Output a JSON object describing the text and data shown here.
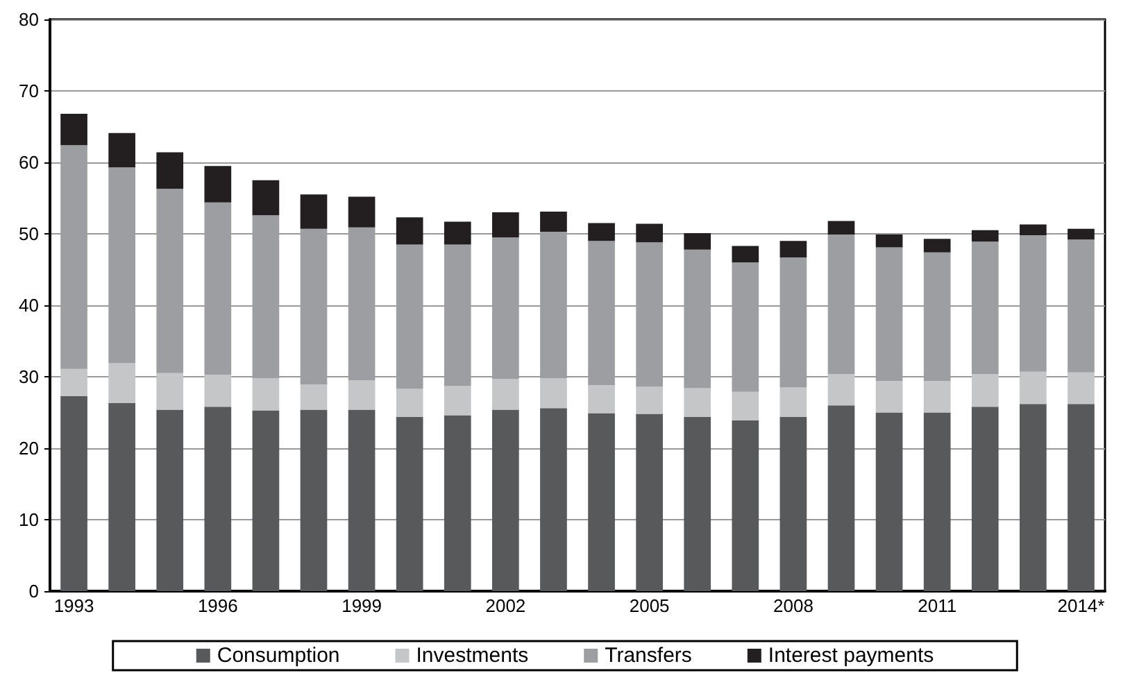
{
  "chart_data": {
    "type": "bar",
    "stacked": true,
    "grid": "y",
    "legend": "bottom",
    "categories": [
      "1993",
      null,
      null,
      "1996",
      null,
      null,
      "1999",
      null,
      null,
      "2002",
      null,
      null,
      "2005",
      null,
      null,
      "2008",
      null,
      null,
      "2011",
      null,
      null,
      "2014*"
    ],
    "ylim": [
      0,
      80
    ],
    "yticks": [
      0,
      10,
      20,
      30,
      40,
      50,
      60,
      70,
      80
    ],
    "series": [
      {
        "name": "Consumption",
        "color": "#58595b",
        "values": [
          27.3,
          26.3,
          25.4,
          25.8,
          25.3,
          25.4,
          25.4,
          24.4,
          24.6,
          25.4,
          25.6,
          24.9,
          24.8,
          24.4,
          23.9,
          24.4,
          26.0,
          25.0,
          25.0,
          25.8,
          26.2,
          26.2
        ]
      },
      {
        "name": "Investments",
        "color": "#c5c6c8",
        "values": [
          3.8,
          5.6,
          5.1,
          4.5,
          4.5,
          3.5,
          4.1,
          3.9,
          4.1,
          4.3,
          4.2,
          3.9,
          3.8,
          4.0,
          4.0,
          4.1,
          4.4,
          4.4,
          4.4,
          4.6,
          4.5,
          4.4
        ]
      },
      {
        "name": "Transfers",
        "color": "#9d9ea2",
        "values": [
          31.3,
          27.4,
          25.8,
          24.1,
          22.8,
          21.8,
          21.4,
          20.2,
          19.8,
          19.8,
          20.5,
          20.2,
          20.2,
          19.4,
          18.1,
          18.2,
          19.5,
          18.7,
          18.0,
          18.5,
          19.1,
          18.6
        ]
      },
      {
        "name": "Interest payments",
        "color": "#231f20",
        "values": [
          4.4,
          4.8,
          5.1,
          5.1,
          4.9,
          4.8,
          4.3,
          3.8,
          3.2,
          3.5,
          2.8,
          2.5,
          2.6,
          2.3,
          2.3,
          2.3,
          1.9,
          1.8,
          1.9,
          1.6,
          1.5,
          1.5
        ]
      }
    ]
  }
}
